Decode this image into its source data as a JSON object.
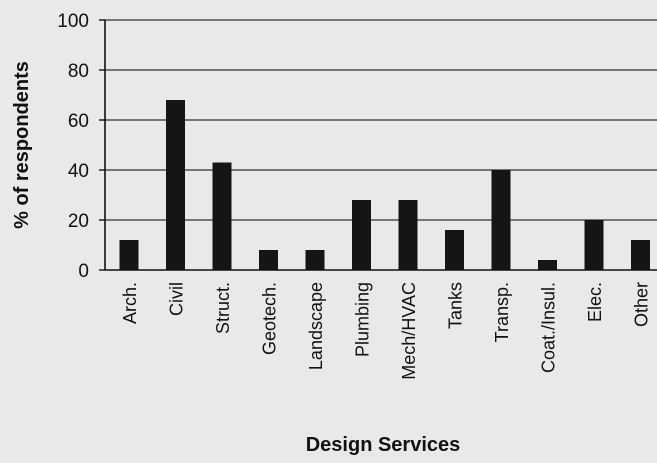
{
  "chart_data": {
    "type": "bar",
    "title": "",
    "xlabel": "Design Services",
    "ylabel": "% of respondents",
    "ylim": [
      0,
      100
    ],
    "yticks": [
      0,
      20,
      40,
      60,
      80,
      100
    ],
    "grid": true,
    "legend": "none",
    "bar_color": "#151515",
    "grid_color": "#333333",
    "categories": [
      "Arch.",
      "Civil",
      "Struct.",
      "Geotech.",
      "Landscape",
      "Plumbing",
      "Mech/HVAC",
      "Tanks",
      "Transp.",
      "Coat./Insul.",
      "Elec.",
      "Other"
    ],
    "values": [
      12,
      68,
      43,
      8,
      8,
      28,
      28,
      16,
      40,
      4,
      20,
      12
    ]
  }
}
